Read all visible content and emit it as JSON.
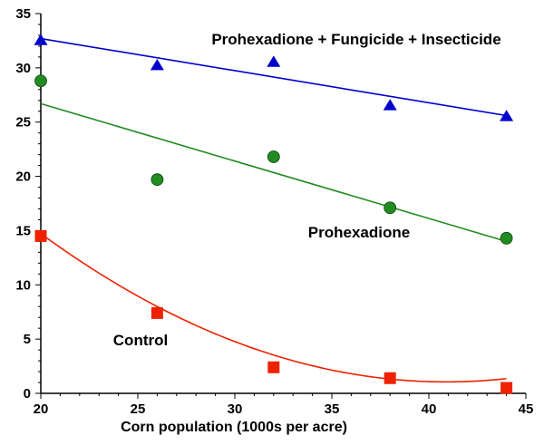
{
  "chart_data": {
    "type": "scatter",
    "xlabel": "Corn population (1000s per acre)",
    "ylabel": "",
    "xlim": [
      20,
      45
    ],
    "ylim": [
      0,
      35
    ],
    "xticks": [
      20,
      25,
      30,
      35,
      40,
      45
    ],
    "yticks": [
      0,
      5,
      10,
      15,
      20,
      25,
      30,
      35
    ],
    "grid": false,
    "series": [
      {
        "name": "Prohexadione + Fungicide + Insecticide",
        "marker": "triangle",
        "color": "#0000cc",
        "x": [
          20,
          26,
          32,
          38,
          44
        ],
        "y": [
          32.5,
          30.2,
          30.5,
          26.5,
          25.5
        ],
        "fit": {
          "kind": "linear",
          "from": [
            20,
            32.7
          ],
          "to": [
            44,
            25.6
          ]
        }
      },
      {
        "name": "Prohexadione",
        "marker": "circle",
        "color": "#228b22",
        "x": [
          20,
          26,
          32,
          38,
          44
        ],
        "y": [
          28.8,
          19.7,
          21.8,
          17.1,
          14.3
        ],
        "fit": {
          "kind": "linear",
          "from": [
            20,
            26.7
          ],
          "to": [
            44,
            14.0
          ]
        }
      },
      {
        "name": "Control",
        "marker": "square",
        "color": "#ee2200",
        "x": [
          20,
          26,
          32,
          38,
          44
        ],
        "y": [
          14.5,
          7.4,
          2.4,
          1.4,
          0.5
        ],
        "fit": {
          "kind": "quadratic",
          "coef": [
            53.4,
            -2.56,
            0.0313
          ],
          "range": [
            20,
            44
          ]
        }
      }
    ]
  }
}
